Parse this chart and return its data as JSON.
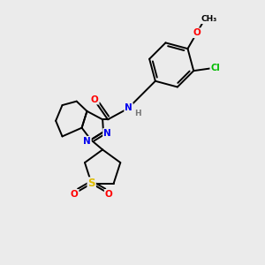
{
  "bg_color": "#ebebeb",
  "atom_colors": {
    "C": "#000000",
    "N": "#0000ee",
    "O": "#ff0000",
    "S": "#ddbb00",
    "Cl": "#00bb00",
    "H": "#777777"
  },
  "bond_color": "#000000",
  "bond_width": 1.4,
  "fig_size": [
    3.0,
    3.0
  ],
  "dpi": 100
}
